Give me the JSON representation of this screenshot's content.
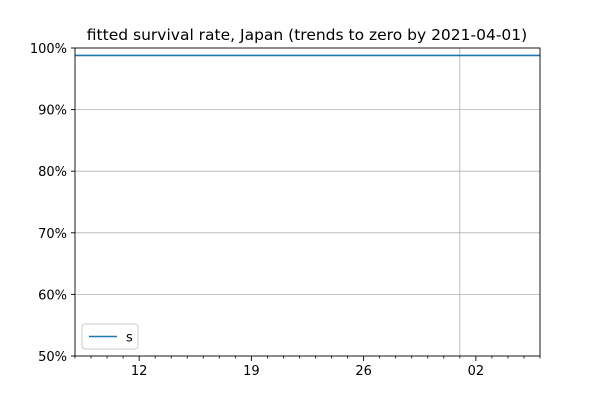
{
  "chart_data": {
    "type": "line",
    "title": "fitted survival rate, Japan (trends to zero by 2021-04-01)",
    "xlabel": "",
    "ylabel": "",
    "ylim": [
      50,
      100
    ],
    "y_ticks": [
      50,
      60,
      70,
      80,
      90,
      100
    ],
    "y_tick_labels": [
      "50%",
      "60%",
      "70%",
      "80%",
      "90%",
      "100%"
    ],
    "xlim": [
      0,
      29
    ],
    "x_ticks": [
      4,
      11,
      18,
      25
    ],
    "x_tick_labels": [
      "12",
      "19",
      "26",
      "02"
    ],
    "x_minor_step": 1,
    "x_gridlines": [
      24
    ],
    "y_gridlines": [
      60,
      70,
      80,
      90
    ],
    "series": [
      {
        "name": "s",
        "color": "#1f77b4",
        "x": [
          0,
          29
        ],
        "values": [
          98.8,
          98.8
        ]
      }
    ],
    "legend": {
      "position": "lower-left",
      "entries": [
        "s"
      ]
    }
  },
  "colors": {
    "grid": "#b0b0b0",
    "axis": "#000000",
    "line": "#1f77b4"
  }
}
